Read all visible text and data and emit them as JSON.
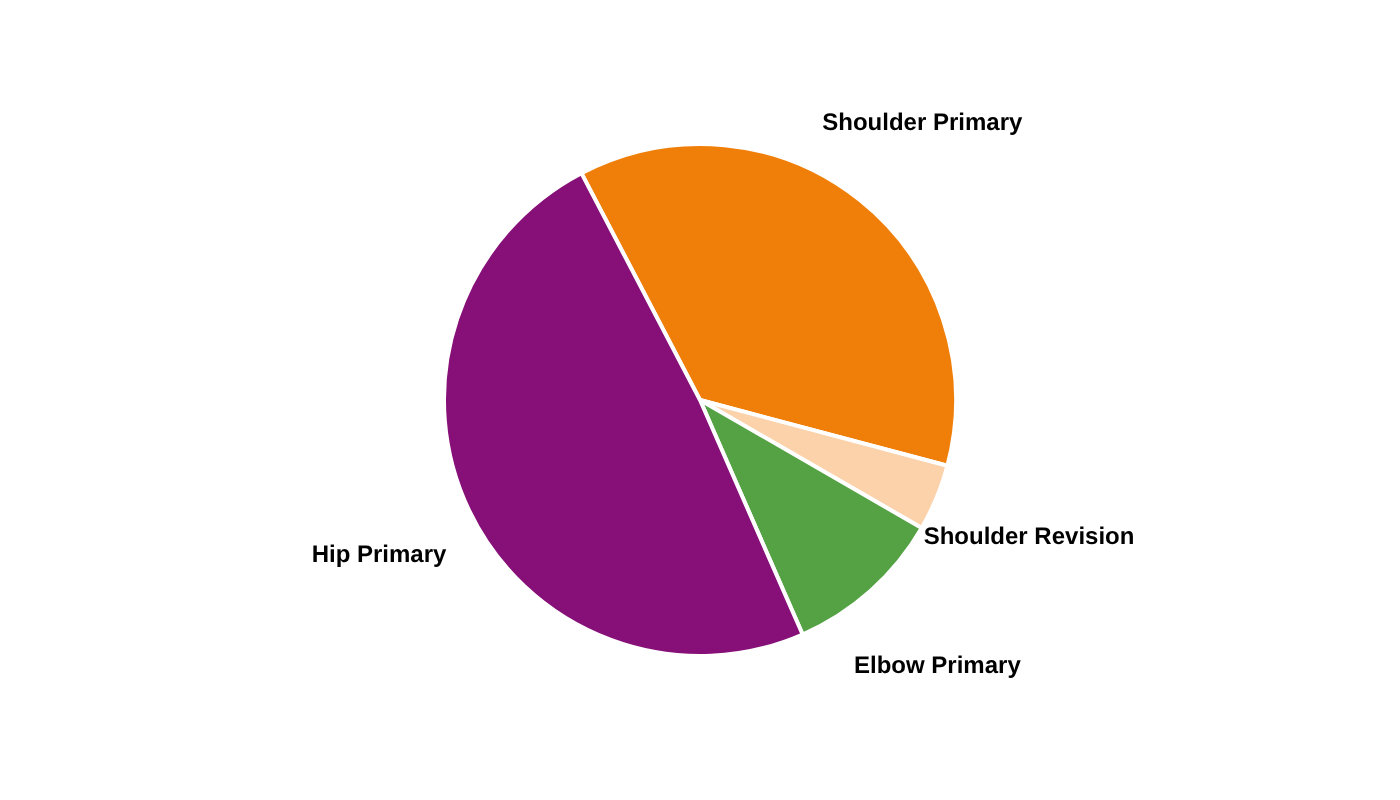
{
  "chart_data": {
    "type": "pie",
    "categories": [
      "Shoulder Primary",
      "Shoulder Revision",
      "Elbow Primary",
      "Hip Primary"
    ],
    "values": [
      36.8,
      4.2,
      10.1,
      48.9
    ],
    "colors": [
      "#f07f09",
      "#fcd2ab",
      "#54a244",
      "#861077"
    ]
  }
}
